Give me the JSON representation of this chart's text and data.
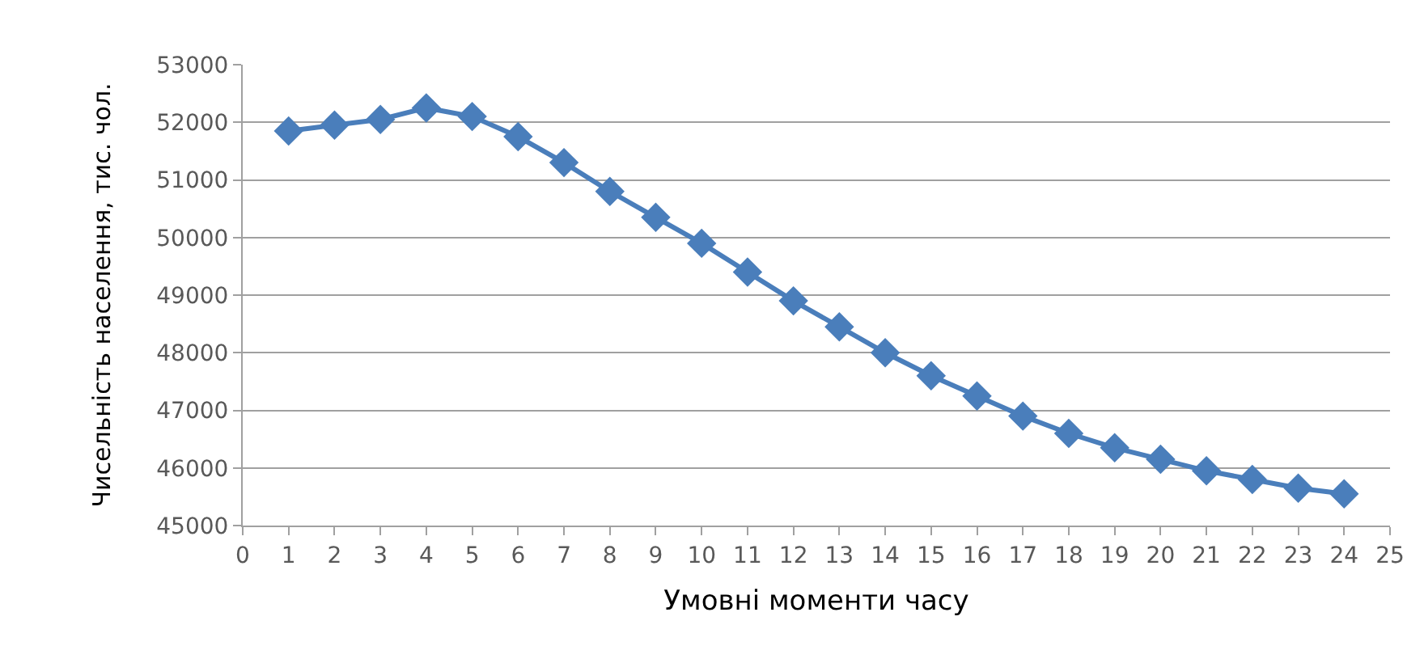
{
  "chart_data": {
    "type": "line",
    "xlabel": "Умовні моменти часу",
    "ylabel": "Чисельність населення, тис. чол.",
    "x": [
      1,
      2,
      3,
      4,
      5,
      6,
      7,
      8,
      9,
      10,
      11,
      12,
      13,
      14,
      15,
      16,
      17,
      18,
      19,
      20,
      21,
      22,
      23,
      24
    ],
    "series": [
      {
        "color": "#4a7ebb",
        "values": [
          51850,
          51950,
          52050,
          52250,
          52100,
          51750,
          51300,
          50800,
          50350,
          49900,
          49400,
          48900,
          48450,
          48000,
          47600,
          47250,
          46900,
          46600,
          46350,
          46150,
          45950,
          45800,
          45650,
          45550
        ]
      }
    ],
    "xlim": [
      0,
      25
    ],
    "xticks": [
      0,
      1,
      2,
      3,
      4,
      5,
      6,
      7,
      8,
      9,
      10,
      11,
      12,
      13,
      14,
      15,
      16,
      17,
      18,
      19,
      20,
      21,
      22,
      23,
      24,
      25
    ],
    "ylim": [
      45000,
      53000
    ],
    "yticks": [
      45000,
      46000,
      47000,
      48000,
      49000,
      50000,
      51000,
      52000,
      53000
    ],
    "grid": "y",
    "marker": "diamond",
    "line_style": "solid"
  }
}
